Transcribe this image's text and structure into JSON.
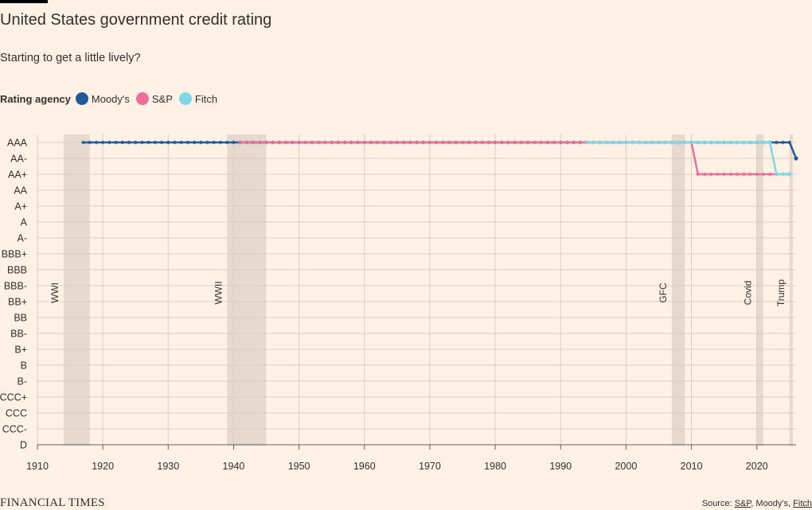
{
  "title": "United States government credit rating",
  "subtitle": "Starting to get a little lively?",
  "legend": {
    "title": "Rating agency",
    "items": [
      {
        "label": "Moody's",
        "color": "#1F5A9C"
      },
      {
        "label": "S&P",
        "color": "#EB6F98"
      },
      {
        "label": "Fitch",
        "color": "#7ED8E6"
      }
    ]
  },
  "footer": {
    "logo": "FINANCIAL TIMES",
    "source_prefix": "Source: ",
    "source_sp": "S&P",
    "source_sep1": ", ",
    "source_moodys": "Moody's",
    "source_sep2": ", ",
    "source_fitch": "Fitch"
  },
  "chart_data": {
    "type": "line",
    "xlim": [
      1910,
      2026
    ],
    "xticks": [
      1910,
      1920,
      1930,
      1940,
      1950,
      1960,
      1970,
      1980,
      1990,
      2000,
      2010,
      2020
    ],
    "yticks": [
      "AAA",
      "AA-",
      "AA+",
      "AA",
      "A+",
      "A",
      "A-",
      "BBB+",
      "BBB",
      "BBB-",
      "BB+",
      "BB",
      "BB-",
      "B+",
      "B",
      "B-",
      "CCC+",
      "CCC",
      "CCC-",
      "D"
    ],
    "grid": true,
    "periods": [
      {
        "label": "WWI",
        "start": 1914,
        "end": 1918
      },
      {
        "label": "WWII",
        "start": 1939,
        "end": 1945
      },
      {
        "label": "GFC",
        "start": 2007,
        "end": 2009
      },
      {
        "label": "Covid",
        "start": 2020,
        "end": 2021
      },
      {
        "label": "Trump",
        "start": 2025,
        "end": 2025.5
      }
    ],
    "series": [
      {
        "name": "Moody's",
        "color": "#1F5A9C",
        "points": [
          [
            1917,
            "AAA"
          ],
          [
            2025,
            "AAA"
          ],
          [
            2026,
            "AA-"
          ]
        ]
      },
      {
        "name": "S&P",
        "color": "#EB6F98",
        "points": [
          [
            1941,
            "AAA"
          ],
          [
            2010,
            "AAA"
          ],
          [
            2011,
            "AA+"
          ],
          [
            2025,
            "AA+"
          ]
        ]
      },
      {
        "name": "Fitch",
        "color": "#7ED8E6",
        "points": [
          [
            1994,
            "AAA"
          ],
          [
            2022,
            "AAA"
          ],
          [
            2023,
            "AA+"
          ],
          [
            2025,
            "AA+"
          ]
        ]
      }
    ]
  }
}
